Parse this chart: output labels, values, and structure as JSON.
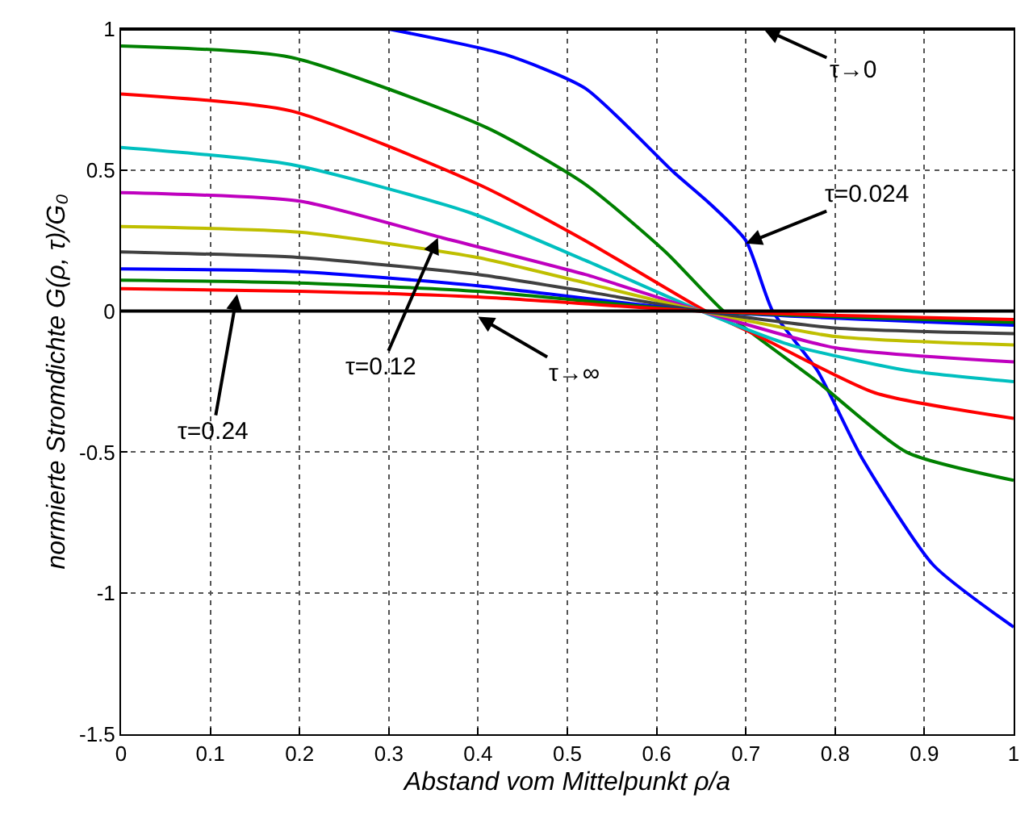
{
  "chart_data": {
    "type": "line",
    "xlabel": "Abstand vom Mittelpunkt ρ/a",
    "ylabel": "normierte Stromdichte G(ρ, τ)/G₀",
    "xlim": [
      0,
      1
    ],
    "ylim": [
      -1.5,
      1
    ],
    "xticks": [
      0,
      0.1,
      0.2,
      0.3,
      0.4,
      0.5,
      0.6,
      0.7,
      0.8,
      0.9,
      1
    ],
    "yticks": [
      -1.5,
      -1,
      -0.5,
      0,
      0.5,
      1
    ],
    "grid": true,
    "line_style": "solid",
    "marker": "none",
    "series": [
      {
        "color": "#000000",
        "x": [
          0,
          1
        ],
        "values": [
          1,
          1
        ]
      },
      {
        "color": "#000000",
        "x": [
          0,
          1
        ],
        "values": [
          0,
          0
        ]
      },
      {
        "color": "#0000ff",
        "x": [
          0.3,
          0.43,
          0.52,
          0.62,
          0.66,
          0.7,
          0.73,
          0.78,
          0.83,
          0.91,
          1.0
        ],
        "values": [
          1,
          0.91,
          0.79,
          0.49,
          0.38,
          0.25,
          0,
          -0.21,
          -0.52,
          -0.9,
          -1.12
        ]
      },
      {
        "color": "#008000",
        "x": [
          0,
          0.19,
          0.41,
          0.52,
          0.61,
          0.675,
          0.78,
          0.88,
          1.0
        ],
        "values": [
          0.94,
          0.9,
          0.65,
          0.45,
          0.21,
          0,
          -0.25,
          -0.5,
          -0.6
        ]
      },
      {
        "color": "#ff0000",
        "x": [
          0,
          0.19,
          0.4,
          0.52,
          0.655,
          0.715,
          0.845,
          1.0
        ],
        "values": [
          0.77,
          0.71,
          0.45,
          0.25,
          0,
          -0.09,
          -0.29,
          -0.38
        ]
      },
      {
        "color": "#00bfbf",
        "x": [
          0,
          0.19,
          0.39,
          0.52,
          0.65,
          0.75,
          0.88,
          1.0
        ],
        "values": [
          0.58,
          0.52,
          0.35,
          0.18,
          0,
          -0.12,
          -0.21,
          -0.25
        ]
      },
      {
        "color": "#bf00bf",
        "x": [
          0,
          0.2,
          0.36,
          0.52,
          0.65,
          0.8,
          1.0
        ],
        "values": [
          0.42,
          0.39,
          0.26,
          0.13,
          0,
          -0.13,
          -0.18
        ]
      },
      {
        "color": "#bfbf00",
        "x": [
          0,
          0.2,
          0.4,
          0.52,
          0.65,
          0.8,
          1.0
        ],
        "values": [
          0.3,
          0.28,
          0.19,
          0.1,
          0,
          -0.09,
          -0.12
        ]
      },
      {
        "color": "#404040",
        "x": [
          0,
          0.2,
          0.4,
          0.52,
          0.65,
          0.8,
          1.0
        ],
        "values": [
          0.21,
          0.19,
          0.13,
          0.07,
          0,
          -0.06,
          -0.08
        ]
      },
      {
        "color": "#0000ff",
        "x": [
          0,
          0.2,
          0.4,
          0.65,
          1.0
        ],
        "values": [
          0.15,
          0.14,
          0.09,
          0,
          -0.05
        ]
      },
      {
        "color": "#008000",
        "x": [
          0,
          0.2,
          0.4,
          0.65,
          1.0
        ],
        "values": [
          0.11,
          0.1,
          0.07,
          0,
          -0.04
        ]
      },
      {
        "color": "#ff0000",
        "x": [
          0,
          0.2,
          0.4,
          0.65,
          1.0
        ],
        "values": [
          0.08,
          0.07,
          0.05,
          0,
          -0.03
        ]
      }
    ],
    "annotations": [
      {
        "text": "τ→0",
        "x": 0.72,
        "y": 1
      },
      {
        "text": "τ=0.024",
        "x": 0.7,
        "y": 0.24
      },
      {
        "text": "τ=0.12",
        "x": 0.355,
        "y": 0.26
      },
      {
        "text": "τ=0.24",
        "x": 0.13,
        "y": 0.06
      },
      {
        "text": "τ→∞",
        "x": 0.4,
        "y": -0.02
      }
    ]
  }
}
